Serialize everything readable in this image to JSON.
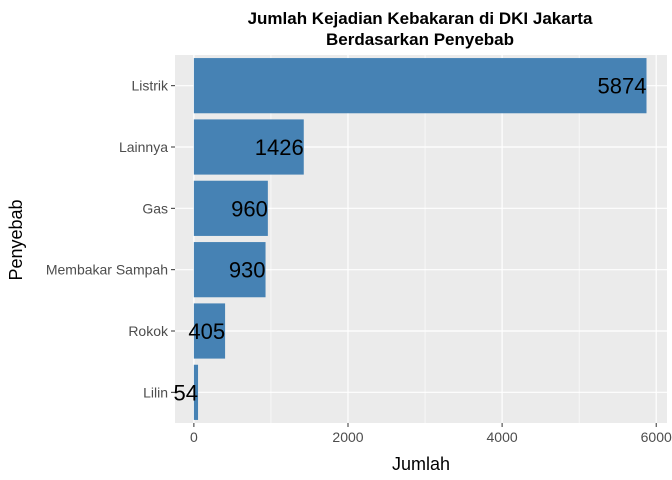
{
  "chart_data": {
    "type": "bar",
    "orientation": "horizontal",
    "title": [
      "Jumlah Kejadian Kebakaran di DKI Jakarta",
      "Berdasarkan Penyebab"
    ],
    "xlabel": "Jumlah",
    "ylabel": "Penyebab",
    "categories": [
      "Listrik",
      "Lainnya",
      "Gas",
      "Membakar Sampah",
      "Rokok",
      "Lilin"
    ],
    "values": [
      5874,
      1426,
      960,
      930,
      405,
      54
    ],
    "xlim": [
      -245,
      6140
    ],
    "xticks": [
      0,
      2000,
      4000,
      6000
    ],
    "grid": true,
    "colors": {
      "bar": "#4682B4",
      "panel": "#EBEBEB",
      "grid": "#FFFFFF"
    }
  }
}
